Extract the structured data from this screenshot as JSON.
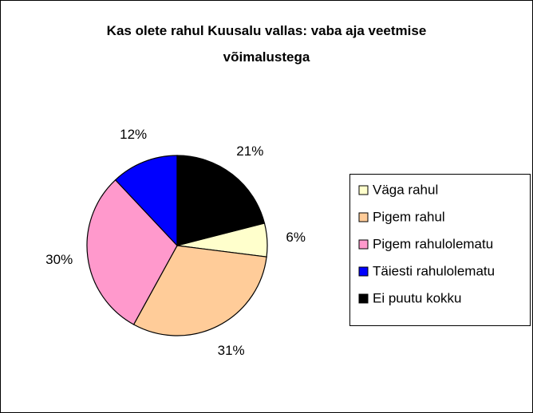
{
  "chart_data": {
    "type": "pie",
    "title": "Kas olete rahul Kuusalu vallas: vaba aja veetmise võimalustega",
    "categories": [
      "Väga rahul",
      "Pigem rahul",
      "Pigem rahulolematu",
      "Täiesti rahulolematu",
      "Ei puutu kokku"
    ],
    "values": [
      6,
      31,
      30,
      12,
      21
    ],
    "value_labels": [
      "6%",
      "31%",
      "30%",
      "12%",
      "21%"
    ],
    "colors": [
      "#ffffcc",
      "#ffcc99",
      "#ff99cc",
      "#0000ff",
      "#000000"
    ],
    "legend": "right"
  }
}
